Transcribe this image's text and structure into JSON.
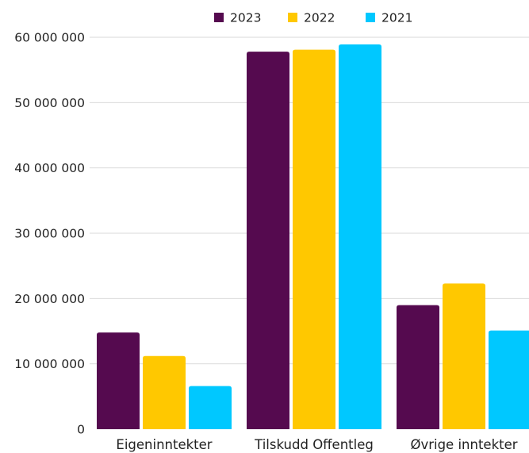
{
  "chart_data": {
    "type": "bar",
    "title": "",
    "xlabel": "",
    "ylabel": "",
    "categories": [
      "Eigeninntekter",
      "Tilskudd Offentleg",
      "Øvrige inntekter"
    ],
    "series": [
      {
        "name": "2023",
        "color": "#550a4f",
        "values": [
          14800000,
          57800000,
          19000000
        ]
      },
      {
        "name": "2022",
        "color": "#ffc800",
        "values": [
          11200000,
          58100000,
          22300000
        ]
      },
      {
        "name": "2021",
        "color": "#00c8ff",
        "values": [
          6600000,
          58900000,
          15100000
        ]
      }
    ],
    "ylim": [
      0,
      60000000
    ],
    "yticks": [
      {
        "value": 0,
        "label": "0"
      },
      {
        "value": 10000000,
        "label": "10 000 000"
      },
      {
        "value": 20000000,
        "label": "20 000 000"
      },
      {
        "value": 30000000,
        "label": "30 000 000"
      },
      {
        "value": 40000000,
        "label": "40 000 000"
      },
      {
        "value": 50000000,
        "label": "50 000 000"
      },
      {
        "value": 60000000,
        "label": "60 000 000"
      }
    ],
    "grid": true,
    "legend_position": "top"
  }
}
